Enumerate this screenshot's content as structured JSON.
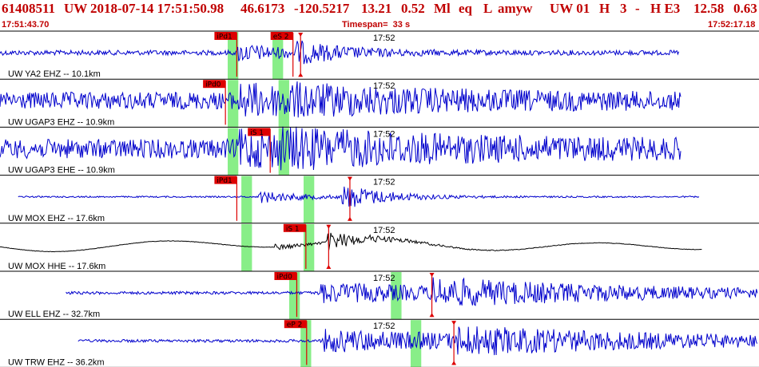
{
  "header": {
    "event_id": "61408511",
    "network": "UW",
    "datetime": "2018-07-14 17:51:50.98",
    "latitude": "46.6173",
    "longitude": "-120.5217",
    "depth": "13.21",
    "magnitude": "0.52",
    "mag_type": "Ml",
    "event_type": "eq",
    "flag": "L",
    "author": "amyw",
    "source": "UW 01",
    "h": "H",
    "count": "3",
    "dash": "-",
    "quality": "H E3",
    "v1": "12.58",
    "v2": "0.63"
  },
  "subheader": {
    "start_time": "17:51:43.70",
    "timespan": "Timespan=  33 s",
    "end_time": "17:52:17.18"
  },
  "colors": {
    "header_text": "#c00000",
    "trace_blue": "#0000cc",
    "trace_black": "#000000",
    "pick_red": "#dd0000",
    "window_green": "#88ee88",
    "divider": "#000000"
  },
  "panels": [
    {
      "label": "UW YA2 EHZ -- 10.1km",
      "time_mark": "17:52",
      "color": "blue",
      "picks": [
        {
          "label": "iPd1",
          "t": 0.312
        },
        {
          "label": "eS 2",
          "t": 0.386
        },
        {
          "label": "",
          "t": 0.396,
          "marker": true
        }
      ],
      "windows": [
        {
          "t": 0.3,
          "w": 0.014
        },
        {
          "t": 0.359,
          "w": 0.014
        }
      ],
      "trace": {
        "start": 0.0,
        "end": 0.895,
        "noise": 0.1,
        "onset": 0.312,
        "amp": 0.34,
        "s_onset": 0.39,
        "s_amp": 0.45,
        "decay": 0.07
      }
    },
    {
      "label": "UW UGAP3 EHZ -- 10.9km",
      "time_mark": "17:52",
      "color": "blue",
      "picks": [
        {
          "label": "iPd0",
          "t": 0.297
        }
      ],
      "windows": [
        {
          "t": 0.3,
          "w": 0.014
        },
        {
          "t": 0.367,
          "w": 0.014
        }
      ],
      "trace": {
        "start": 0.0,
        "end": 0.898,
        "noise": 0.36,
        "onset": 0.312,
        "amp": 0.45,
        "s_onset": 0.37,
        "s_amp": 0.5,
        "decay": 0.2
      }
    },
    {
      "label": "UW UGAP3 EHE -- 10.9km",
      "time_mark": "17:52",
      "color": "blue",
      "picks": [
        {
          "label": "iS 1",
          "t": 0.356
        }
      ],
      "windows": [
        {
          "t": 0.3,
          "w": 0.014
        },
        {
          "t": 0.367,
          "w": 0.014
        }
      ],
      "trace": {
        "start": 0.0,
        "end": 0.898,
        "noise": 0.4,
        "onset": 0.312,
        "amp": 0.5,
        "s_onset": 0.37,
        "s_amp": 0.6,
        "decay": 0.25
      }
    },
    {
      "label": "UW MOX EHZ -- 17.6km",
      "time_mark": "17:52",
      "color": "blue",
      "picks": [
        {
          "label": "iPd1",
          "t": 0.312
        },
        {
          "label": "",
          "t": 0.461,
          "marker": true
        }
      ],
      "windows": [
        {
          "t": 0.318,
          "w": 0.014
        },
        {
          "t": 0.4,
          "w": 0.014
        }
      ],
      "trace": {
        "start": 0.024,
        "end": 0.922,
        "noise": 0.03,
        "onset": 0.34,
        "amp": 0.25,
        "s_onset": 0.45,
        "s_amp": 0.55,
        "decay": 0.06
      }
    },
    {
      "label": "UW MOX HHE -- 17.6km",
      "time_mark": "17:52",
      "color": "black",
      "picks": [
        {
          "label": "iS 1",
          "t": 0.403
        },
        {
          "label": "",
          "t": 0.433,
          "marker": true
        }
      ],
      "windows": [
        {
          "t": 0.318,
          "w": 0.014
        },
        {
          "t": 0.4,
          "w": 0.014
        }
      ],
      "trace": {
        "start": 0.0,
        "end": 0.925,
        "noise": 0.01,
        "onset": 0.36,
        "amp": 0.12,
        "s_onset": 0.43,
        "s_amp": 0.4,
        "decay": 0.06,
        "long_period": true
      }
    },
    {
      "label": "UW ELL EHZ -- 32.7km",
      "time_mark": "17:52",
      "color": "blue",
      "picks": [
        {
          "label": "iPd0",
          "t": 0.391
        },
        {
          "label": "",
          "t": 0.569,
          "marker": true
        }
      ],
      "windows": [
        {
          "t": 0.381,
          "w": 0.014
        },
        {
          "t": 0.515,
          "w": 0.014
        }
      ],
      "trace": {
        "start": 0.087,
        "end": 0.998,
        "noise": 0.06,
        "onset": 0.418,
        "amp": 0.4,
        "s_onset": 0.57,
        "s_amp": 0.62,
        "decay": 0.3
      }
    },
    {
      "label": "UW TRW EHZ -- 36.2km",
      "time_mark": "17:52",
      "color": "blue",
      "picks": [
        {
          "label": "eP 2",
          "t": 0.404
        },
        {
          "label": "",
          "t": 0.598,
          "marker": true
        }
      ],
      "windows": [
        {
          "t": 0.396,
          "w": 0.014
        },
        {
          "t": 0.541,
          "w": 0.014
        }
      ],
      "trace": {
        "start": 0.103,
        "end": 0.998,
        "noise": 0.06,
        "onset": 0.425,
        "amp": 0.45,
        "s_onset": 0.6,
        "s_amp": 0.62,
        "decay": 0.35
      }
    }
  ]
}
